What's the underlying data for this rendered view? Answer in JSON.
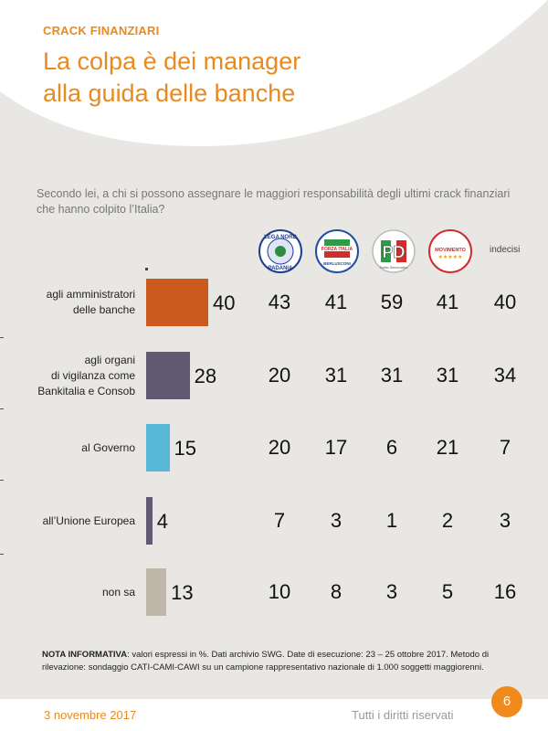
{
  "header": {
    "kicker": "CRACK FINANZIARI",
    "title_line1": "La colpa è dei manager",
    "title_line2": "alla guida delle banche"
  },
  "question": "Secondo lei, a chi si possono assegnare le maggiori responsabilità degli ultimi crack finanziari che hanno colpito l’Italia?",
  "columns": {
    "lega": {
      "logo_top": "LEGA NORD",
      "logo_bottom": "PADANIA"
    },
    "forza": {
      "logo_main": "FORZA ITALIA",
      "logo_sub": "BERLUSCONI"
    },
    "pd": {
      "logo_main": "PD",
      "logo_sub": "Partito Democratico"
    },
    "m5s": {
      "logo_main": "MOVIMENTO",
      "logo_sub": "★★★★★"
    },
    "indecisi": "indecisi"
  },
  "chart_data": {
    "type": "bar",
    "orientation": "horizontal",
    "categories": [
      "agli amministratori delle banche",
      "agli organi di vigilanza come Bankitalia e Consob",
      "al Governo",
      "all'Unione Europea",
      "non sa"
    ],
    "values": [
      40,
      28,
      15,
      4,
      13
    ],
    "bar_colors": [
      "#cc5a1e",
      "#615872",
      "#58b8d6",
      "#615872",
      "#c0b6a9"
    ],
    "table": {
      "columns": [
        "Lega Nord",
        "Forza Italia",
        "PD",
        "Movimento 5 Stelle",
        "indecisi"
      ],
      "rows": [
        [
          43,
          41,
          59,
          41,
          40
        ],
        [
          20,
          31,
          31,
          31,
          34
        ],
        [
          20,
          17,
          6,
          21,
          7
        ],
        [
          7,
          3,
          1,
          2,
          3
        ],
        [
          10,
          8,
          3,
          5,
          16
        ]
      ]
    }
  },
  "rows": [
    {
      "label_lines": [
        "agli amministratori",
        "delle banche"
      ],
      "value": "40",
      "cells": [
        "43",
        "41",
        "59",
        "41",
        "40"
      ]
    },
    {
      "label_lines": [
        "agli organi",
        "di vigilanza come",
        "Bankitalia e Consob"
      ],
      "value": "28",
      "cells": [
        "20",
        "31",
        "31",
        "31",
        "34"
      ]
    },
    {
      "label_lines": [
        "al Governo"
      ],
      "value": "15",
      "cells": [
        "20",
        "17",
        "6",
        "21",
        "7"
      ]
    },
    {
      "label_lines": [
        "all’Unione Europea"
      ],
      "value": "4",
      "cells": [
        "7",
        "3",
        "1",
        "2",
        "3"
      ]
    },
    {
      "label_lines": [
        "non sa"
      ],
      "value": "13",
      "cells": [
        "10",
        "8",
        "3",
        "5",
        "16"
      ]
    }
  ],
  "note": {
    "label": "NOTA INFORMATIVA",
    "text": ": valori espressi in %. Dati archivio SWG. Date di esecuzione: 23 – 25 ottobre 2017. Metodo di rilevazione: sondaggio CATI-CAMI-CAWI su un campione rappresentativo nazionale di 1.000 soggetti maggiorenni."
  },
  "footer": {
    "date": "3 novembre 2017",
    "rights": "Tutti i diritti riservati",
    "page": "6"
  },
  "colors": {
    "accent": "#e88a1e",
    "background": "#e9e7e3",
    "page_badge": "#f08a1c"
  }
}
